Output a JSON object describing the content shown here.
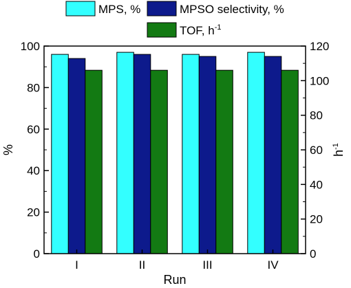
{
  "chart_data": {
    "type": "bar",
    "categories": [
      "I",
      "II",
      "III",
      "IV"
    ],
    "xlabel": "Run",
    "ylabel": "%",
    "ylabel_right": "h",
    "ylabel_right_sup": "-1",
    "ylim": [
      0,
      100
    ],
    "ylim_right": [
      0,
      120
    ],
    "yticks": [
      0,
      20,
      40,
      60,
      80,
      100
    ],
    "yticks_right": [
      0,
      20,
      40,
      60,
      80,
      100,
      120
    ],
    "grid": false,
    "legend_position": "top",
    "series": [
      {
        "name": "MPS, %",
        "axis": "left",
        "color": "#33ffff",
        "values": [
          96,
          97,
          96,
          97
        ]
      },
      {
        "name": "MPSO selectivity, %",
        "axis": "left",
        "color": "#0d1a8c",
        "values": [
          94,
          96,
          95,
          95
        ]
      },
      {
        "name": "TOF, h",
        "name_sup": "-1",
        "axis": "right",
        "color": "#137a13",
        "values": [
          106,
          106,
          106,
          106
        ]
      }
    ]
  }
}
